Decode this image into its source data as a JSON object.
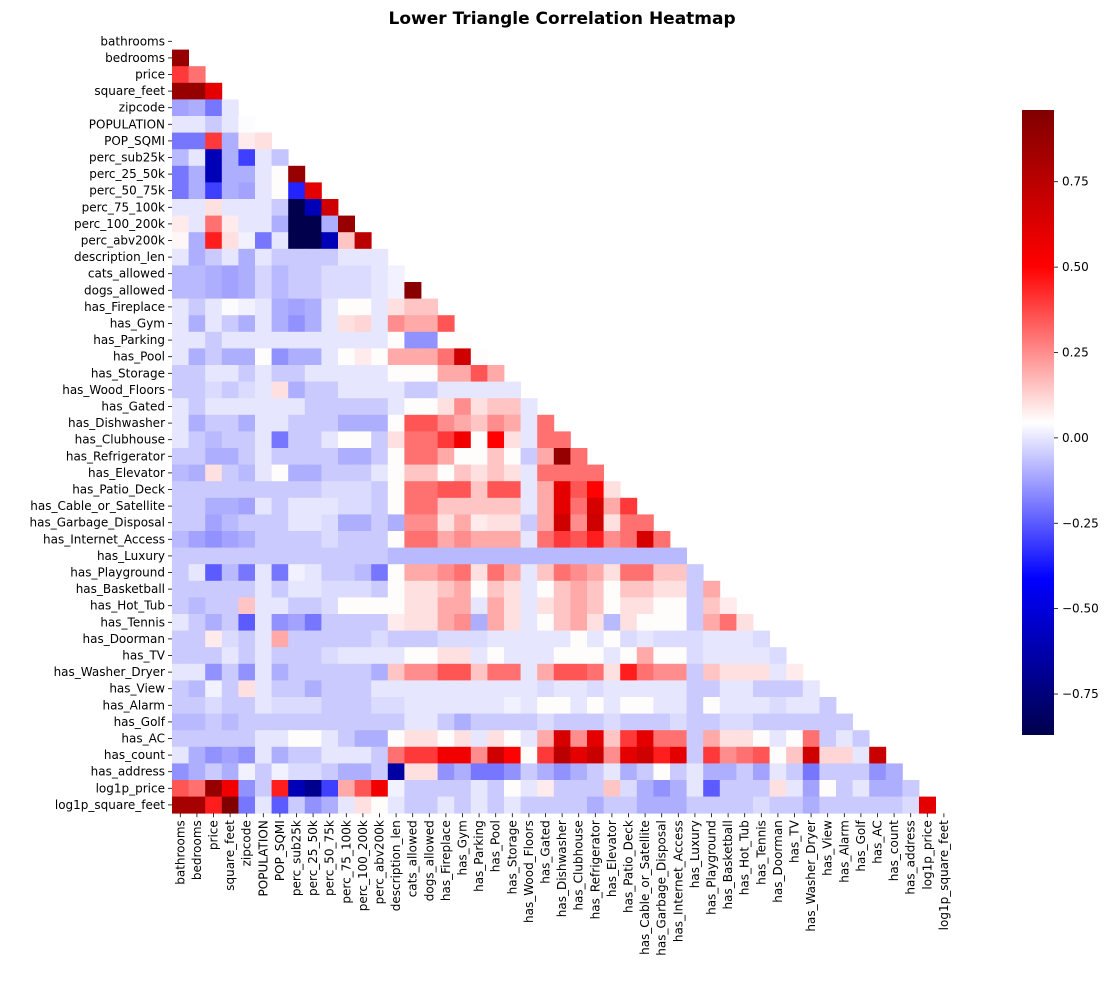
{
  "chart_data": {
    "type": "heatmap",
    "title": "Lower Triangle Correlation Heatmap",
    "mask": "upper triangle including diagonal",
    "labels": [
      "bathrooms",
      "bedrooms",
      "price",
      "square_feet",
      "zipcode",
      "POPULATION",
      "POP_SQMI",
      "perc_sub25k",
      "perc_25_50k",
      "perc_50_75k",
      "perc_75_100k",
      "perc_100_200k",
      "perc_abv200k",
      "description_len",
      "cats_allowed",
      "dogs_allowed",
      "has_Fireplace",
      "has_Gym",
      "has_Parking",
      "has_Pool",
      "has_Storage",
      "has_Wood_Floors",
      "has_Gated",
      "has_Dishwasher",
      "has_Clubhouse",
      "has_Refrigerator",
      "has_Elevator",
      "has_Patio_Deck",
      "has_Cable_or_Satellite",
      "has_Garbage_Disposal",
      "has_Internet_Access",
      "has_Luxury",
      "has_Playground",
      "has_Basketball",
      "has_Hot_Tub",
      "has_Tennis",
      "has_Doorman",
      "has_TV",
      "has_Washer_Dryer",
      "has_View",
      "has_Alarm",
      "has_Golf",
      "has_AC",
      "has_count",
      "has_address",
      "log1p_price",
      "log1p_square_feet"
    ],
    "colormap": "seismic",
    "vmin": -0.87,
    "vmax": 0.96,
    "colorbar_ticks": [
      0.75,
      0.5,
      0.25,
      0.0,
      -0.25,
      -0.5,
      -0.75
    ],
    "colorbar_tick_labels": [
      "0.75",
      "0.50",
      "0.25",
      "0.00",
      "−0.25",
      "−0.50",
      "−0.75"
    ],
    "values": [
      [],
      [
        0.88
      ],
      [
        0.4,
        0.3
      ],
      [
        0.88,
        0.88,
        0.6
      ],
      [
        -0.12,
        -0.1,
        -0.2,
        0
      ],
      [
        0,
        0,
        -0.05,
        0,
        0.04
      ],
      [
        -0.2,
        -0.2,
        0.4,
        -0.1,
        0.08,
        0.1
      ],
      [
        -0.08,
        0,
        -0.6,
        -0.1,
        -0.3,
        0,
        -0.06
      ],
      [
        -0.2,
        -0.1,
        -0.6,
        -0.1,
        -0.1,
        0,
        0.05,
        0.88
      ],
      [
        -0.2,
        -0.1,
        -0.3,
        -0.1,
        -0.12,
        0,
        0.05,
        -0.35,
        0.6
      ],
      [
        0,
        0,
        0.1,
        0,
        0,
        0,
        -0.05,
        -0.87,
        -0.6,
        0.68
      ],
      [
        0.08,
        0,
        0.3,
        0.08,
        0,
        0,
        -0.1,
        -0.87,
        -0.87,
        -0.1,
        0.88
      ],
      [
        0.06,
        -0.1,
        0.45,
        0.1,
        0.02,
        -0.2,
        0,
        -0.87,
        -0.87,
        -0.6,
        0.15,
        0.75
      ],
      [
        0,
        -0.1,
        -0.05,
        0,
        -0.1,
        0,
        -0.05,
        -0.05,
        -0.05,
        -0.05,
        0,
        0,
        0
      ],
      [
        -0.08,
        -0.08,
        -0.1,
        -0.12,
        -0.1,
        -0.03,
        -0.08,
        -0.05,
        -0.05,
        -0.02,
        -0.02,
        -0.02,
        0,
        0.02
      ],
      [
        -0.08,
        -0.08,
        -0.1,
        -0.12,
        -0.1,
        -0.03,
        -0.08,
        -0.05,
        -0.05,
        -0.02,
        -0.02,
        -0.02,
        0,
        0.02,
        0.93
      ],
      [
        0,
        -0.05,
        0,
        0.04,
        0.02,
        0,
        -0.1,
        -0.12,
        -0.1,
        0,
        0.05,
        0.05,
        0,
        0.1,
        0.15,
        0.15
      ],
      [
        0,
        -0.1,
        0,
        -0.05,
        -0.1,
        0,
        -0.1,
        -0.15,
        -0.1,
        0,
        0.1,
        0.12,
        0,
        0.25,
        0.2,
        0.2,
        0.35
      ],
      [
        0,
        0,
        -0.05,
        0,
        0,
        0,
        0,
        0,
        0,
        0,
        0,
        0,
        0,
        0.05,
        -0.15,
        -0.15,
        0.05,
        0.05
      ],
      [
        0,
        -0.1,
        -0.05,
        -0.1,
        -0.1,
        0.05,
        -0.15,
        -0.1,
        -0.1,
        0,
        0.05,
        0.08,
        0.05,
        0.2,
        0.2,
        0.2,
        0.3,
        0.68,
        0.05
      ],
      [
        -0.05,
        -0.05,
        0,
        0,
        -0.05,
        0,
        -0.05,
        -0.05,
        0,
        0,
        0,
        0,
        0,
        0.05,
        0.05,
        0.05,
        0.2,
        0.2,
        0.35,
        0.2
      ],
      [
        -0.05,
        -0.05,
        -0.02,
        -0.05,
        -0.02,
        0,
        0.1,
        -0.1,
        -0.05,
        -0.05,
        0,
        0,
        0,
        0,
        -0.05,
        -0.05,
        0,
        0,
        0,
        0,
        0
      ],
      [
        0,
        -0.05,
        0,
        0,
        0,
        0,
        0,
        0,
        -0.05,
        -0.05,
        -0.05,
        -0.05,
        -0.05,
        0,
        0.05,
        0.05,
        0.1,
        0.25,
        0.1,
        0.15,
        0.15,
        0
      ],
      [
        0,
        -0.1,
        -0.05,
        -0.05,
        -0.1,
        0,
        0,
        -0.05,
        -0.05,
        -0.05,
        -0.1,
        -0.1,
        -0.1,
        0.05,
        0.35,
        0.35,
        0.25,
        0.2,
        0.15,
        0.25,
        0.2,
        0,
        0.3
      ],
      [
        0,
        -0.05,
        -0.08,
        -0.05,
        -0.05,
        0,
        -0.2,
        -0.05,
        -0.05,
        0,
        0.05,
        0.05,
        -0.05,
        0.1,
        0.3,
        0.3,
        0.4,
        0.55,
        0.05,
        0.5,
        0.1,
        0,
        0.3,
        0.3
      ],
      [
        -0.05,
        -0.05,
        -0.1,
        -0.1,
        -0.05,
        0,
        -0.05,
        -0.05,
        -0.05,
        -0.05,
        -0.1,
        -0.1,
        -0.05,
        0.05,
        0.3,
        0.3,
        0.2,
        0.05,
        0.05,
        0.15,
        0.05,
        -0.05,
        0.2,
        0.88,
        0.3
      ],
      [
        -0.08,
        -0.1,
        0.1,
        -0.05,
        -0.08,
        0,
        0.05,
        -0.1,
        -0.1,
        -0.05,
        -0.05,
        -0.05,
        0,
        0.05,
        0.15,
        0.15,
        0.05,
        0.15,
        0.1,
        0.15,
        0.1,
        0,
        0.3,
        0.3,
        0.3,
        0.3
      ],
      [
        -0.05,
        -0.05,
        -0.05,
        -0.05,
        -0.05,
        -0.05,
        -0.05,
        -0.05,
        -0.05,
        -0.02,
        -0.02,
        -0.02,
        -0.05,
        0.05,
        0.3,
        0.3,
        0.35,
        0.35,
        0.15,
        0.35,
        0.35,
        0,
        0.2,
        0.6,
        0.35,
        0.5,
        0.1
      ],
      [
        -0.05,
        -0.05,
        -0.1,
        -0.1,
        -0.12,
        0,
        -0.05,
        0,
        0,
        0,
        -0.02,
        -0.02,
        -0.05,
        0.05,
        0.3,
        0.3,
        0.15,
        0.15,
        0.15,
        0.15,
        0.15,
        0,
        0.2,
        0.6,
        0.3,
        0.65,
        0.2,
        0.4
      ],
      [
        -0.05,
        -0.05,
        -0.12,
        -0.08,
        -0.05,
        -0.05,
        -0.05,
        0,
        0,
        -0.02,
        -0.1,
        -0.1,
        -0.05,
        -0.1,
        0.25,
        0.25,
        0.1,
        0.2,
        0.08,
        0.1,
        0.1,
        -0.05,
        0.2,
        0.68,
        0.25,
        0.68,
        0.1,
        0.3,
        0.3
      ],
      [
        -0.08,
        -0.12,
        -0.15,
        -0.12,
        -0.1,
        -0.05,
        -0.05,
        -0.05,
        -0.05,
        -0.02,
        -0.05,
        -0.05,
        -0.05,
        0.05,
        0.3,
        0.3,
        0.2,
        0.25,
        0.2,
        0.2,
        0.2,
        0,
        0.3,
        0.4,
        0.35,
        0.45,
        0.25,
        0.3,
        0.65,
        0.3
      ],
      [
        -0.05,
        -0.05,
        -0.05,
        -0.05,
        -0.05,
        -0.05,
        -0.05,
        -0.05,
        -0.05,
        -0.05,
        -0.05,
        -0.05,
        -0.05,
        -0.08,
        -0.08,
        -0.08,
        -0.08,
        -0.08,
        -0.08,
        -0.08,
        -0.08,
        -0.08,
        -0.08,
        -0.08,
        -0.08,
        -0.08,
        -0.08,
        -0.08,
        -0.08,
        -0.08,
        -0.08
      ],
      [
        -0.05,
        0,
        -0.25,
        -0.08,
        -0.2,
        0,
        -0.2,
        0.02,
        0,
        -0.05,
        -0.05,
        -0.08,
        -0.2,
        0.05,
        0.2,
        0.2,
        0.25,
        0.3,
        0.1,
        0.3,
        0.2,
        0,
        0.15,
        0.3,
        0.25,
        0.2,
        0.1,
        0.3,
        0.3,
        0.15,
        0.15,
        -0.05
      ],
      [
        -0.05,
        -0.05,
        -0.05,
        -0.05,
        -0.05,
        0,
        -0.05,
        0,
        0,
        -0.02,
        -0.02,
        -0.02,
        -0.05,
        0.05,
        0.1,
        0.1,
        0.15,
        0.2,
        0.05,
        0.15,
        0.1,
        0,
        0.05,
        0.15,
        0.2,
        0.15,
        0.05,
        0.15,
        0.15,
        0.1,
        0.1,
        -0.05,
        0.2
      ],
      [
        -0.05,
        -0.08,
        -0.05,
        -0.05,
        0.15,
        0,
        0,
        -0.05,
        -0.05,
        -0.02,
        0.05,
        0.05,
        0.05,
        0.05,
        0.1,
        0.1,
        0.2,
        0.2,
        0,
        0.2,
        0.1,
        0,
        0.1,
        0.15,
        0.2,
        0.15,
        0.05,
        0.1,
        0.1,
        0.05,
        0.05,
        -0.05,
        0.15,
        0.08
      ],
      [
        0,
        -0.05,
        -0.1,
        -0.05,
        -0.25,
        0,
        -0.15,
        -0.12,
        -0.2,
        -0.05,
        -0.05,
        -0.05,
        -0.05,
        0.08,
        0.1,
        0.1,
        0.2,
        0.25,
        -0.1,
        0.2,
        0.1,
        0,
        0.05,
        0.15,
        0.2,
        0.1,
        -0.08,
        0.1,
        0.05,
        0.05,
        0.05,
        -0.05,
        0.2,
        0.3,
        0.1
      ],
      [
        -0.05,
        -0.05,
        0.08,
        -0.02,
        -0.05,
        0,
        0.2,
        -0.05,
        -0.05,
        -0.05,
        -0.05,
        -0.05,
        -0.02,
        -0.05,
        -0.05,
        -0.05,
        -0.02,
        -0.02,
        -0.02,
        0,
        0,
        0,
        0,
        0,
        0.05,
        0,
        0.05,
        -0.02,
        0,
        -0.02,
        -0.02,
        -0.02,
        0,
        0,
        0,
        -0.02
      ],
      [
        -0.05,
        -0.05,
        -0.05,
        0,
        -0.05,
        0,
        -0.05,
        -0.05,
        -0.05,
        -0.02,
        0,
        0,
        0,
        0,
        0.05,
        0.05,
        0.1,
        0.1,
        0,
        0.05,
        0,
        0,
        0,
        0.05,
        0.05,
        0.05,
        0,
        0.05,
        0.2,
        0.05,
        0.05,
        -0.02,
        0,
        0,
        0,
        0,
        -0.02
      ],
      [
        0,
        0,
        -0.15,
        -0.05,
        -0.15,
        0,
        -0.1,
        -0.05,
        -0.05,
        -0.05,
        -0.05,
        -0.05,
        -0.1,
        0.15,
        0.25,
        0.25,
        0.35,
        0.35,
        0.15,
        0.3,
        0.3,
        0,
        0.2,
        0.35,
        0.35,
        0.3,
        0.1,
        0.45,
        0.3,
        0.25,
        0.25,
        -0.05,
        0.15,
        0.1,
        0.1,
        0.1,
        0,
        0.08
      ],
      [
        -0.05,
        -0.08,
        0.02,
        -0.05,
        0.1,
        0,
        -0.05,
        -0.05,
        -0.1,
        -0.05,
        -0.05,
        -0.05,
        0,
        0,
        0,
        0,
        0,
        0,
        0,
        0,
        0,
        0,
        -0.02,
        0,
        0,
        -0.02,
        0,
        0,
        0,
        0,
        0,
        -0.05,
        -0.05,
        0,
        0,
        -0.05,
        -0.05,
        -0.05,
        0
      ],
      [
        -0.05,
        -0.05,
        -0.02,
        -0.05,
        -0.05,
        0,
        -0.02,
        -0.02,
        -0.02,
        -0.05,
        -0.05,
        -0.05,
        -0.02,
        -0.02,
        0,
        0,
        0,
        0,
        0,
        0,
        0.02,
        0,
        0.05,
        0.05,
        0,
        0.05,
        0,
        0.05,
        0.05,
        0,
        0,
        -0.05,
        0.05,
        0,
        0,
        0,
        -0.02,
        0,
        0,
        -0.05
      ],
      [
        -0.08,
        -0.08,
        -0.05,
        -0.08,
        -0.05,
        -0.05,
        -0.05,
        -0.05,
        -0.05,
        -0.05,
        -0.05,
        -0.05,
        -0.05,
        -0.05,
        0,
        0,
        -0.05,
        -0.1,
        -0.05,
        -0.05,
        -0.05,
        -0.05,
        -0.02,
        -0.05,
        -0.05,
        -0.05,
        -0.02,
        -0.05,
        -0.05,
        -0.05,
        -0.02,
        -0.05,
        -0.05,
        -0.02,
        -0.02,
        -0.05,
        -0.05,
        -0.05,
        -0.05,
        -0.05,
        -0.05
      ],
      [
        -0.05,
        -0.05,
        -0.05,
        -0.05,
        -0.05,
        0,
        0,
        0.05,
        0.05,
        0,
        -0.05,
        -0.1,
        -0.1,
        0.05,
        0.1,
        0.1,
        0.05,
        0.1,
        0,
        0.1,
        0.05,
        0,
        0.2,
        0.65,
        0.25,
        0.6,
        0.15,
        0.4,
        0.6,
        0.3,
        0.3,
        -0.05,
        0.2,
        0.1,
        0.1,
        0.05,
        0,
        0.05,
        0.3,
        -0.05,
        0,
        -0.05
      ],
      [
        0,
        -0.1,
        -0.15,
        -0.12,
        -0.15,
        0,
        -0.1,
        -0.05,
        -0.05,
        0,
        0,
        0,
        -0.05,
        0.3,
        0.4,
        0.4,
        0.55,
        0.55,
        0.25,
        0.68,
        0.5,
        0.05,
        0.4,
        0.75,
        0.6,
        0.7,
        0.25,
        0.6,
        0.68,
        0.45,
        0.6,
        -0.05,
        0.4,
        0.25,
        0.3,
        0.35,
        0.05,
        0.15,
        0.68,
        0.12,
        0.12,
        0,
        0.7
      ],
      [
        -0.15,
        -0.1,
        -0.05,
        -0.1,
        0.02,
        -0.05,
        0.02,
        -0.02,
        -0.02,
        -0.05,
        -0.1,
        -0.1,
        -0.05,
        -0.65,
        0.1,
        0.1,
        -0.15,
        -0.1,
        -0.2,
        -0.2,
        -0.15,
        -0.05,
        -0.1,
        -0.15,
        -0.1,
        -0.05,
        0,
        -0.1,
        -0.05,
        0.05,
        -0.05,
        0,
        -0.1,
        -0.1,
        -0.05,
        -0.12,
        0,
        -0.05,
        -0.2,
        -0.05,
        -0.05,
        -0.05,
        -0.15,
        -0.1
      ],
      [
        0.35,
        0.3,
        0.88,
        0.55,
        -0.15,
        -0.05,
        0.45,
        -0.6,
        -0.7,
        -0.3,
        0.2,
        0.35,
        0.55,
        0.02,
        -0.05,
        -0.05,
        -0.05,
        -0.05,
        0,
        -0.05,
        0.05,
        0,
        0.08,
        -0.05,
        -0.05,
        -0.05,
        0.15,
        -0.02,
        -0.1,
        -0.15,
        -0.1,
        0,
        -0.25,
        -0.05,
        -0.05,
        -0.05,
        0.1,
        0,
        -0.12,
        0.05,
        -0.05,
        0,
        -0.1,
        -0.1,
        -0.05
      ],
      [
        0.82,
        0.82,
        0.45,
        0.96,
        -0.2,
        0,
        -0.25,
        -0.05,
        -0.15,
        -0.1,
        0,
        0.1,
        0.05,
        0,
        -0.05,
        -0.05,
        0,
        -0.05,
        0,
        -0.05,
        0,
        -0.05,
        -0.05,
        -0.05,
        -0.05,
        -0.1,
        -0.05,
        -0.05,
        -0.1,
        -0.1,
        -0.1,
        -0.05,
        -0.05,
        -0.05,
        -0.05,
        -0.02,
        -0.05,
        -0.05,
        -0.1,
        -0.05,
        -0.05,
        -0.05,
        -0.05,
        -0.05,
        -0.02,
        0.6
      ]
    ]
  }
}
